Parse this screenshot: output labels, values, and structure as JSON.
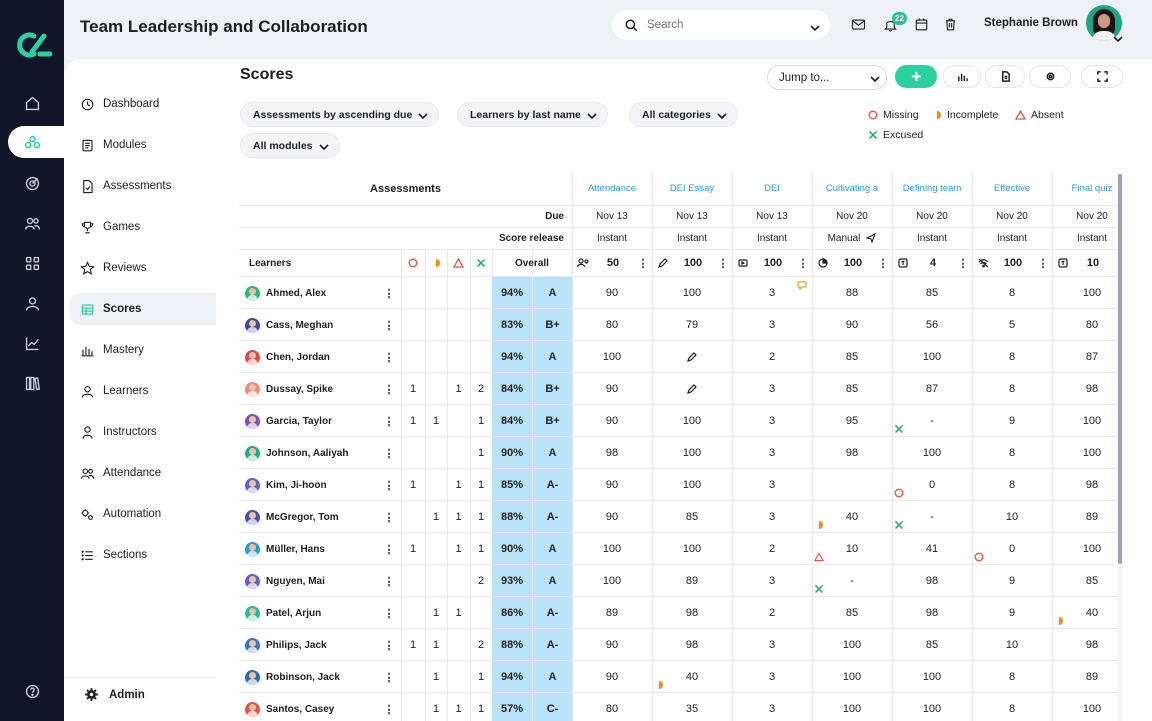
{
  "app": {
    "title": "Team Leadership and Collaboration"
  },
  "header": {
    "search_placeholder": "Search",
    "notification_count": "22",
    "user_name": "Stephanie Brown"
  },
  "sidebar": {
    "items": [
      {
        "label": "Dashboard",
        "icon": "dashboard-icon"
      },
      {
        "label": "Modules",
        "icon": "modules-icon"
      },
      {
        "label": "Assessments",
        "icon": "assessments-icon"
      },
      {
        "label": "Games",
        "icon": "trophy-icon"
      },
      {
        "label": "Reviews",
        "icon": "star-icon"
      },
      {
        "label": "Scores",
        "icon": "table-icon",
        "active": true
      },
      {
        "label": "Mastery",
        "icon": "bar-chart-icon"
      },
      {
        "label": "Learners",
        "icon": "user-icon"
      },
      {
        "label": "Instructors",
        "icon": "instructor-icon"
      },
      {
        "label": "Attendance",
        "icon": "attendance-icon"
      },
      {
        "label": "Automation",
        "icon": "automation-icon"
      },
      {
        "label": "Sections",
        "icon": "list-icon"
      }
    ],
    "admin_label": "Admin"
  },
  "page": {
    "title": "Scores",
    "jump_label": "Jump to..."
  },
  "filters": [
    "Assessments by ascending due",
    "Learners by last name",
    "All categories",
    "All modules"
  ],
  "legend": {
    "missing": "Missing",
    "incomplete": "Incomplete",
    "absent": "Absent",
    "excused": "Excused"
  },
  "colors": {
    "accent": "#2bd0a0",
    "missing": "#e25548",
    "incomplete": "#f08a1c",
    "absent": "#e25548",
    "excused": "#22a86e",
    "overall_bg": "#b8e3f8",
    "link": "#2d9bd8"
  },
  "grid": {
    "assessments_label": "Assessments",
    "due_label": "Due",
    "release_label": "Score release",
    "learners_label": "Learners",
    "overall_label": "Overall",
    "columns": [
      {
        "name": "Attendance",
        "due": "Nov 13",
        "release": "Instant",
        "points": "50"
      },
      {
        "name": "DEI Essay",
        "due": "Nov 13",
        "release": "Instant",
        "points": "100"
      },
      {
        "name": "DEI",
        "due": "Nov 13",
        "release": "Instant",
        "points": "100"
      },
      {
        "name": "Cultivating a",
        "due": "Nov 20",
        "release": "Manual",
        "points": "100"
      },
      {
        "name": "Defining team",
        "due": "Nov 20",
        "release": "Instant",
        "points": "4"
      },
      {
        "name": "Effective",
        "due": "Nov 20",
        "release": "Instant",
        "points": "100"
      },
      {
        "name": "Final quiz",
        "due": "Nov 20",
        "release": "Instant",
        "points": "10"
      }
    ],
    "rows": [
      {
        "name": "Ahmed, Alex",
        "c": [
          "",
          "",
          "",
          ""
        ],
        "pct": "94%",
        "grade": "A",
        "scores": [
          "90",
          "100",
          "3",
          "88",
          "85",
          "8",
          "100"
        ]
      },
      {
        "name": "Cass, Meghan",
        "c": [
          "",
          "",
          "",
          ""
        ],
        "pct": "83%",
        "grade": "B+",
        "scores": [
          "80",
          "79",
          "3",
          "90",
          "56",
          "5",
          "80"
        ]
      },
      {
        "name": "Chen, Jordan",
        "c": [
          "",
          "",
          "",
          ""
        ],
        "pct": "94%",
        "grade": "A",
        "scores": [
          "100",
          "",
          "2",
          "85",
          "100",
          "8",
          "87"
        ]
      },
      {
        "name": "Dussay, Spike",
        "c": [
          "1",
          "",
          "1",
          "2"
        ],
        "pct": "84%",
        "grade": "B+",
        "scores": [
          "90",
          "",
          "3",
          "85",
          "87",
          "8",
          "98"
        ]
      },
      {
        "name": "Garcia, Taylor",
        "c": [
          "1",
          "1",
          "",
          "1"
        ],
        "pct": "84%",
        "grade": "B+",
        "scores": [
          "90",
          "100",
          "3",
          "95",
          "-",
          "9",
          "100"
        ]
      },
      {
        "name": "Johnson, Aaliyah",
        "c": [
          "",
          "",
          "",
          "1"
        ],
        "pct": "90%",
        "grade": "A",
        "scores": [
          "98",
          "100",
          "3",
          "98",
          "100",
          "8",
          "100"
        ]
      },
      {
        "name": "Kim, Ji-hoon",
        "c": [
          "1",
          "",
          "1",
          "1"
        ],
        "pct": "85%",
        "grade": "A-",
        "scores": [
          "90",
          "100",
          "3",
          "",
          "0",
          "8",
          "98"
        ]
      },
      {
        "name": "McGregor, Tom",
        "c": [
          "",
          "1",
          "1",
          "1"
        ],
        "pct": "88%",
        "grade": "A-",
        "scores": [
          "90",
          "85",
          "3",
          "40",
          "-",
          "10",
          "89"
        ]
      },
      {
        "name": "Müller, Hans",
        "c": [
          "1",
          "",
          "1",
          "1"
        ],
        "pct": "90%",
        "grade": "A",
        "scores": [
          "100",
          "100",
          "2",
          "10",
          "41",
          "0",
          "100"
        ]
      },
      {
        "name": "Nguyen, Mai",
        "c": [
          "",
          "",
          "",
          "2"
        ],
        "pct": "93%",
        "grade": "A",
        "scores": [
          "100",
          "89",
          "3",
          "-",
          "98",
          "9",
          "85"
        ]
      },
      {
        "name": "Patel, Arjun",
        "c": [
          "",
          "1",
          "1",
          ""
        ],
        "pct": "86%",
        "grade": "A-",
        "scores": [
          "89",
          "98",
          "2",
          "85",
          "98",
          "9",
          "40"
        ]
      },
      {
        "name": "Philips, Jack",
        "c": [
          "1",
          "1",
          "",
          "2"
        ],
        "pct": "88%",
        "grade": "A-",
        "scores": [
          "90",
          "98",
          "3",
          "100",
          "85",
          "10",
          "98"
        ]
      },
      {
        "name": "Robinson, Jack",
        "c": [
          "",
          "1",
          "",
          "1"
        ],
        "pct": "94%",
        "grade": "A",
        "scores": [
          "90",
          "40",
          "3",
          "100",
          "100",
          "8",
          "89"
        ]
      },
      {
        "name": "Santos, Casey",
        "c": [
          "",
          "1",
          "1",
          "1"
        ],
        "pct": "57%",
        "grade": "C-",
        "scores": [
          "80",
          "35",
          "3",
          "100",
          "100",
          "8",
          "100"
        ]
      }
    ]
  }
}
